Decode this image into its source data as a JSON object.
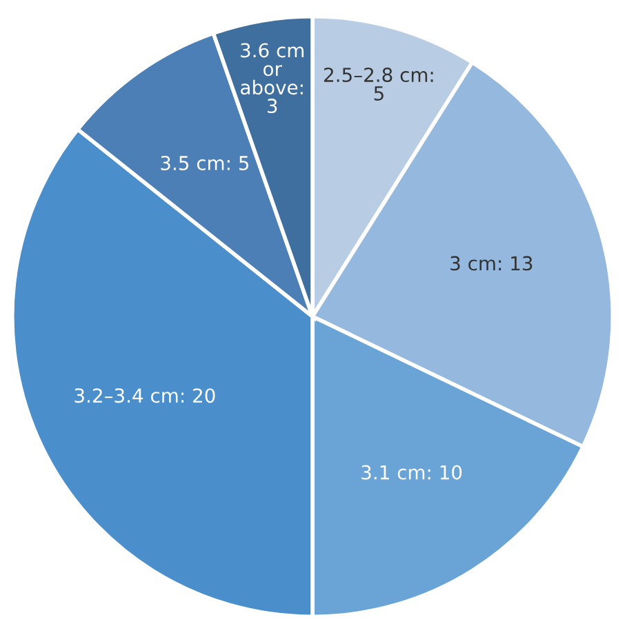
{
  "chart_data": {
    "type": "pie",
    "values": [
      5,
      13,
      10,
      20,
      5,
      3
    ],
    "value_labels": [
      "2.5–2.8 cm: 5",
      "3 cm: 13",
      "3.1 cm: 10",
      "3.2–3.4 cm: 20",
      "3.5 cm: 5",
      "3.6 cm or above: 3"
    ],
    "colors": [
      "#b8cde4",
      "#95b8de",
      "#6aa3d5",
      "#4a8fcb",
      "#4c7fb5",
      "#3f6f9e"
    ],
    "legend": false
  }
}
